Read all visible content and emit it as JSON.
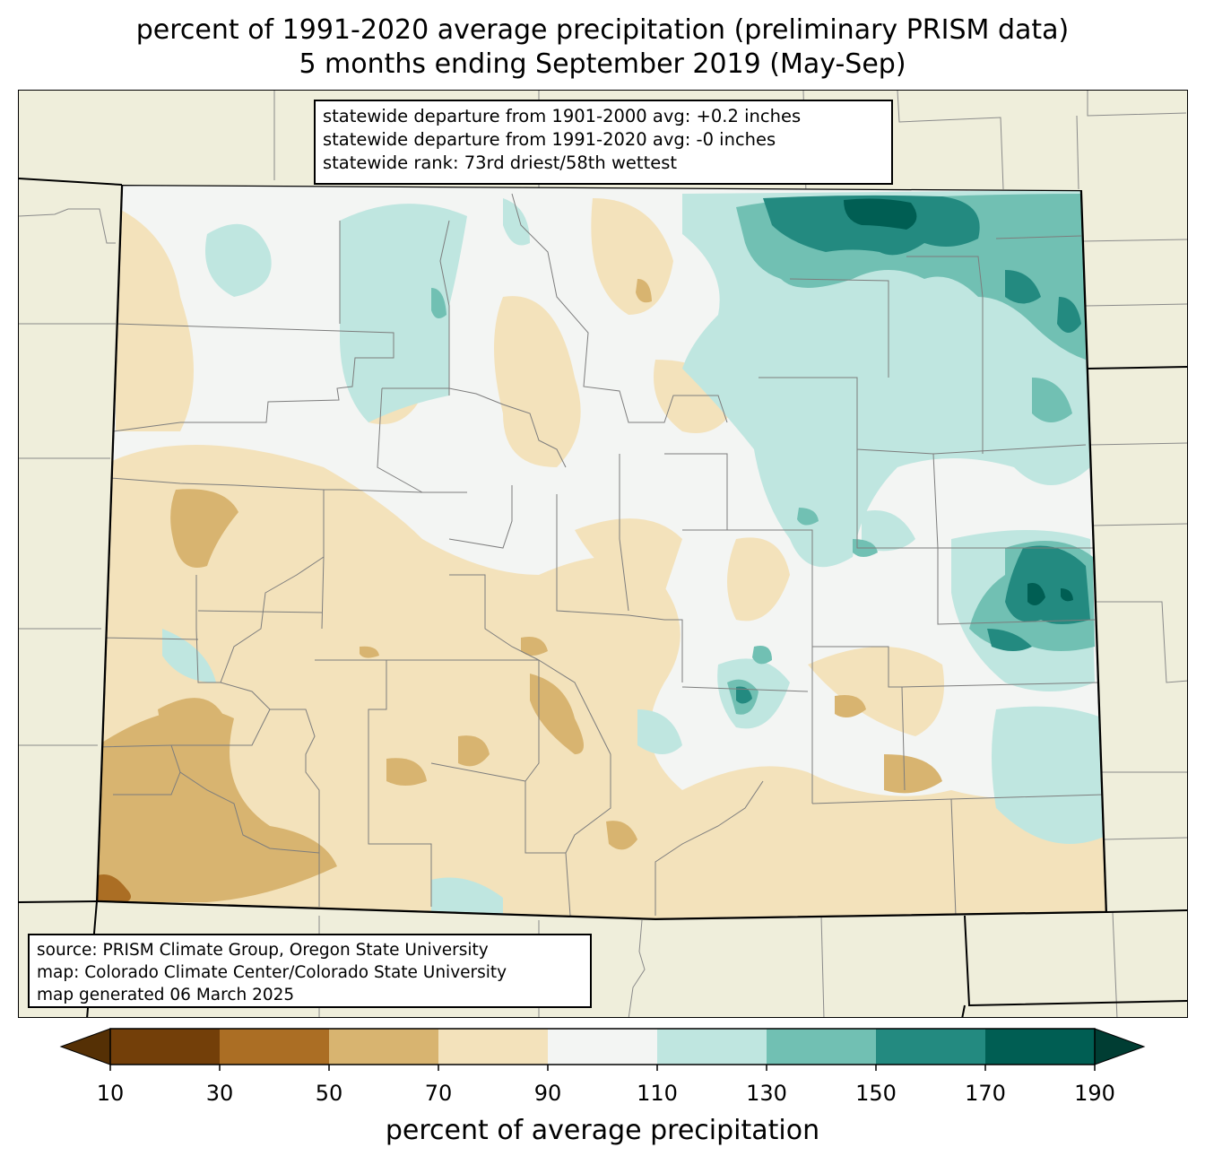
{
  "title": {
    "line1": "percent of 1991-2020 average precipitation (preliminary PRISM data)",
    "line2": "5 months ending September 2019 (May-Sep)"
  },
  "stats": {
    "line1": "statewide departure from 1901-2000 avg: +0.2 inches",
    "line2": "statewide departure from 1991-2020 avg: -0 inches",
    "line3": "statewide rank: 73rd driest/58th wettest"
  },
  "source": {
    "line1": "source: PRISM Climate Group, Oregon State University",
    "line2": "map: Colorado Climate Center/Colorado State University",
    "line3": "map generated 06 March 2025"
  },
  "colorbar": {
    "label": "percent of average precipitation",
    "ticks": [
      "10",
      "30",
      "50",
      "70",
      "90",
      "110",
      "130",
      "150",
      "170",
      "190"
    ],
    "bins": [
      {
        "range": "10-30",
        "color": "#733f09"
      },
      {
        "range": "30-50",
        "color": "#ab6e24"
      },
      {
        "range": "50-70",
        "color": "#d8b470"
      },
      {
        "range": "70-90",
        "color": "#f3e2bb"
      },
      {
        "range": "90-110",
        "color": "#f3f5f3"
      },
      {
        "range": "110-130",
        "color": "#bfe6e0"
      },
      {
        "range": "130-150",
        "color": "#71c0b3"
      },
      {
        "range": "150-170",
        "color": "#238a80"
      },
      {
        "range": "170-190",
        "color": "#005e53"
      }
    ],
    "under_color": "#553005",
    "over_color": "#003d33"
  },
  "map": {
    "background_color": "#efeedb",
    "state": "Colorado"
  }
}
